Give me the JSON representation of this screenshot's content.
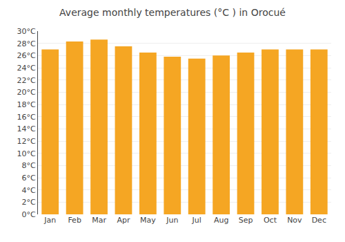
{
  "chart_data": {
    "type": "bar",
    "title": "Average monthly temperatures (°C ) in Orocué",
    "categories": [
      "Jan",
      "Feb",
      "Mar",
      "Apr",
      "May",
      "Jun",
      "Jul",
      "Aug",
      "Sep",
      "Oct",
      "Nov",
      "Dec"
    ],
    "values": [
      27.0,
      28.3,
      28.6,
      27.5,
      26.5,
      25.8,
      25.5,
      26.0,
      26.5,
      27.0,
      27.0,
      27.0
    ],
    "color": "#F5A623",
    "ylim": [
      0,
      30
    ],
    "yticks": [
      {
        "value": 0,
        "label": "0°C"
      },
      {
        "value": 2,
        "label": "2°C"
      },
      {
        "value": 4,
        "label": "4°C"
      },
      {
        "value": 6,
        "label": "6°C"
      },
      {
        "value": 8,
        "label": "8°C"
      },
      {
        "value": 10,
        "label": "10°C"
      },
      {
        "value": 12,
        "label": "12°C"
      },
      {
        "value": 14,
        "label": "14°C"
      },
      {
        "value": 16,
        "label": "16°C"
      },
      {
        "value": 18,
        "label": "18°C"
      },
      {
        "value": 20,
        "label": "20°C"
      },
      {
        "value": 22,
        "label": "22°C"
      },
      {
        "value": 24,
        "label": "24°C"
      },
      {
        "value": 26,
        "label": "26°C"
      },
      {
        "value": 28,
        "label": "28°C"
      },
      {
        "value": 30,
        "label": "30°C"
      }
    ],
    "grid": true
  }
}
